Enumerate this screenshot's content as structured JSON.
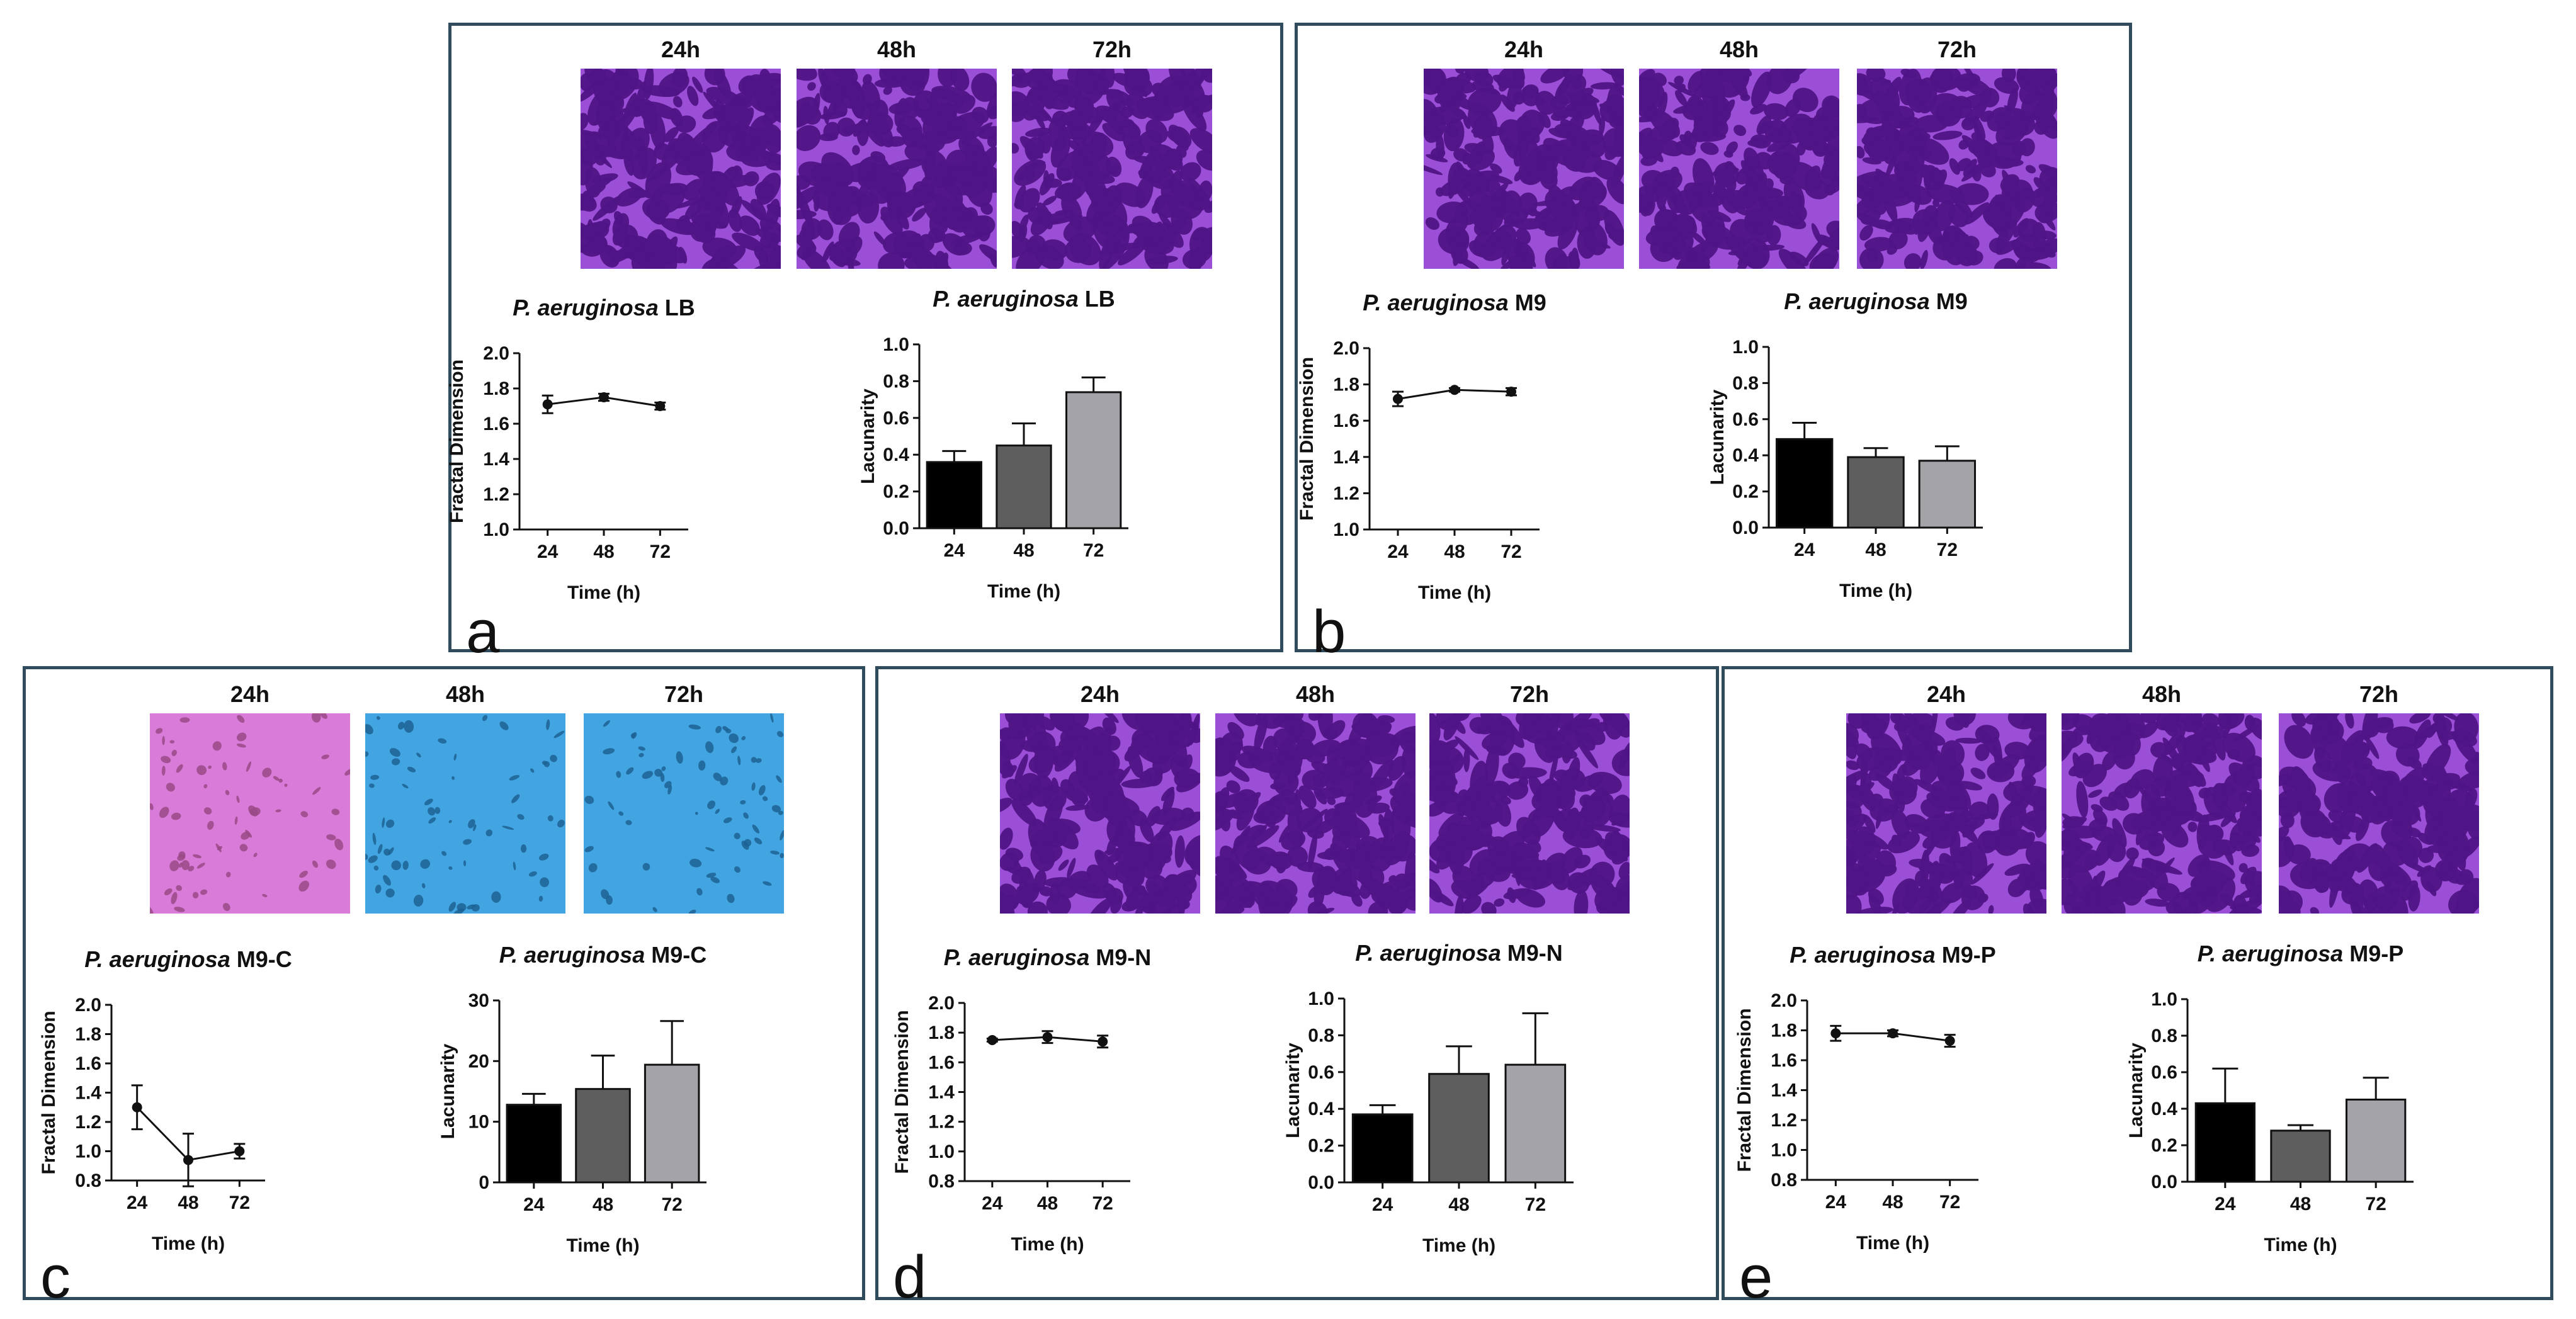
{
  "figure": {
    "palettes": {
      "violet": {
        "base": "#9b4fd6",
        "dark": "#4f1485"
      },
      "pink": {
        "base": "#d97bd9",
        "dark": "#9a4a86"
      },
      "blue": {
        "base": "#42a5e2",
        "dark": "#1c6193"
      }
    },
    "bar_colors": [
      "#000000",
      "#5e5e5e",
      "#a3a3a8"
    ],
    "panels": [
      {
        "letter": "a",
        "time_labels": [
          "24h",
          "48h",
          "72h"
        ],
        "image_palettes": [
          "violet",
          "violet",
          "violet"
        ],
        "fractal_title": {
          "species": "P. aeruginosa",
          "medium": "LB"
        },
        "lacunarity_title": {
          "species": "P. aeruginosa",
          "medium": "LB"
        }
      },
      {
        "letter": "b",
        "time_labels": [
          "24h",
          "48h",
          "72h"
        ],
        "image_palettes": [
          "violet",
          "violet",
          "violet"
        ],
        "fractal_title": {
          "species": "P. aeruginosa",
          "medium": "M9"
        },
        "lacunarity_title": {
          "species": "P. aeruginosa",
          "medium": "M9"
        }
      },
      {
        "letter": "c",
        "time_labels": [
          "24h",
          "48h",
          "72h"
        ],
        "image_palettes": [
          "pink",
          "blue",
          "blue"
        ],
        "fractal_title": {
          "species": "P. aeruginosa",
          "medium": "M9-C"
        },
        "lacunarity_title": {
          "species": "P. aeruginosa",
          "medium": "M9-C"
        }
      },
      {
        "letter": "d",
        "time_labels": [
          "24h",
          "48h",
          "72h"
        ],
        "image_palettes": [
          "violet",
          "violet",
          "violet"
        ],
        "fractal_title": {
          "species": "P. aeruginosa",
          "medium": "M9-N"
        },
        "lacunarity_title": {
          "species": "P. aeruginosa",
          "medium": "M9-N"
        }
      },
      {
        "letter": "e",
        "time_labels": [
          "24h",
          "48h",
          "72h"
        ],
        "image_palettes": [
          "violet",
          "violet",
          "violet"
        ],
        "fractal_title": {
          "species": "P. aeruginosa",
          "medium": "M9-P"
        },
        "lacunarity_title": {
          "species": "P. aeruginosa",
          "medium": "M9-P"
        }
      }
    ]
  },
  "chart_data": [
    {
      "panel": "a",
      "type": "line",
      "title": "P. aeruginosa LB",
      "xlabel": "Time (h)",
      "ylabel": "Fractal Dimension",
      "categories": [
        "24",
        "48",
        "72"
      ],
      "values": [
        1.71,
        1.75,
        1.7
      ],
      "errors": [
        0.05,
        0.02,
        0.02
      ],
      "ylim": [
        1.0,
        2.0
      ],
      "yticks": [
        "1.0",
        "1.2",
        "1.4",
        "1.6",
        "1.8",
        "2.0"
      ]
    },
    {
      "panel": "a",
      "type": "bar",
      "title": "P. aeruginosa LB",
      "xlabel": "Time (h)",
      "ylabel": "Lacunarity",
      "categories": [
        "24",
        "48",
        "72"
      ],
      "values": [
        0.36,
        0.45,
        0.74
      ],
      "errors": [
        0.06,
        0.12,
        0.08
      ],
      "ylim": [
        0.0,
        1.0
      ],
      "yticks": [
        "0.0",
        "0.2",
        "0.4",
        "0.6",
        "0.8",
        "1.0"
      ]
    },
    {
      "panel": "b",
      "type": "line",
      "title": "P. aeruginosa M9",
      "xlabel": "Time (h)",
      "ylabel": "Fractal Dimension",
      "categories": [
        "24",
        "48",
        "72"
      ],
      "values": [
        1.72,
        1.77,
        1.76
      ],
      "errors": [
        0.04,
        0.01,
        0.02
      ],
      "ylim": [
        1.0,
        2.0
      ],
      "yticks": [
        "1.0",
        "1.2",
        "1.4",
        "1.6",
        "1.8",
        "2.0"
      ]
    },
    {
      "panel": "b",
      "type": "bar",
      "title": "P. aeruginosa M9",
      "xlabel": "Time (h)",
      "ylabel": "Lacunarity",
      "categories": [
        "24",
        "48",
        "72"
      ],
      "values": [
        0.49,
        0.39,
        0.37
      ],
      "errors": [
        0.09,
        0.05,
        0.08
      ],
      "ylim": [
        0.0,
        1.0
      ],
      "yticks": [
        "0.0",
        "0.2",
        "0.4",
        "0.6",
        "0.8",
        "1.0"
      ]
    },
    {
      "panel": "c",
      "type": "line",
      "title": "P. aeruginosa M9-C",
      "xlabel": "Time (h)",
      "ylabel": "Fractal Dimension",
      "categories": [
        "24",
        "48",
        "72"
      ],
      "values": [
        1.3,
        0.94,
        1.0
      ],
      "errors": [
        0.15,
        0.18,
        0.05
      ],
      "ylim": [
        0.8,
        2.0
      ],
      "yticks": [
        "0.8",
        "1.0",
        "1.2",
        "1.4",
        "1.6",
        "1.8",
        "2.0"
      ]
    },
    {
      "panel": "c",
      "type": "bar",
      "title": "P. aeruginosa M9-C",
      "xlabel": "Time (h)",
      "ylabel": "Lacunarity",
      "categories": [
        "24",
        "48",
        "72"
      ],
      "values": [
        12.8,
        15.4,
        19.4
      ],
      "errors": [
        1.8,
        5.5,
        7.2
      ],
      "ylim": [
        0,
        30
      ],
      "yticks": [
        "0",
        "10",
        "20",
        "30"
      ]
    },
    {
      "panel": "d",
      "type": "line",
      "title": "P. aeruginosa M9-N",
      "xlabel": "Time (h)",
      "ylabel": "Fractal Dimension",
      "categories": [
        "24",
        "48",
        "72"
      ],
      "values": [
        1.75,
        1.77,
        1.74
      ],
      "errors": [
        0.01,
        0.04,
        0.04
      ],
      "ylim": [
        0.8,
        2.0
      ],
      "yticks": [
        "0.8",
        "1.0",
        "1.2",
        "1.4",
        "1.6",
        "1.8",
        "2.0"
      ]
    },
    {
      "panel": "d",
      "type": "bar",
      "title": "P. aeruginosa M9-N",
      "xlabel": "Time (h)",
      "ylabel": "Lacunarity",
      "categories": [
        "24",
        "48",
        "72"
      ],
      "values": [
        0.37,
        0.59,
        0.64
      ],
      "errors": [
        0.05,
        0.15,
        0.28
      ],
      "ylim": [
        0.0,
        1.0
      ],
      "yticks": [
        "0.0",
        "0.2",
        "0.4",
        "0.6",
        "0.8",
        "1.0"
      ]
    },
    {
      "panel": "e",
      "type": "line",
      "title": "P. aeruginosa M9-P",
      "xlabel": "Time (h)",
      "ylabel": "Fractal Dimension",
      "categories": [
        "24",
        "48",
        "72"
      ],
      "values": [
        1.78,
        1.78,
        1.73
      ],
      "errors": [
        0.05,
        0.02,
        0.04
      ],
      "ylim": [
        0.8,
        2.0
      ],
      "yticks": [
        "0.8",
        "1.0",
        "1.2",
        "1.4",
        "1.6",
        "1.8",
        "2.0"
      ]
    },
    {
      "panel": "e",
      "type": "bar",
      "title": "P. aeruginosa M9-P",
      "xlabel": "Time (h)",
      "ylabel": "Lacunarity",
      "categories": [
        "24",
        "48",
        "72"
      ],
      "values": [
        0.43,
        0.28,
        0.45
      ],
      "errors": [
        0.19,
        0.03,
        0.12
      ],
      "ylim": [
        0.0,
        1.0
      ],
      "yticks": [
        "0.0",
        "0.2",
        "0.4",
        "0.6",
        "0.8",
        "1.0"
      ]
    }
  ]
}
